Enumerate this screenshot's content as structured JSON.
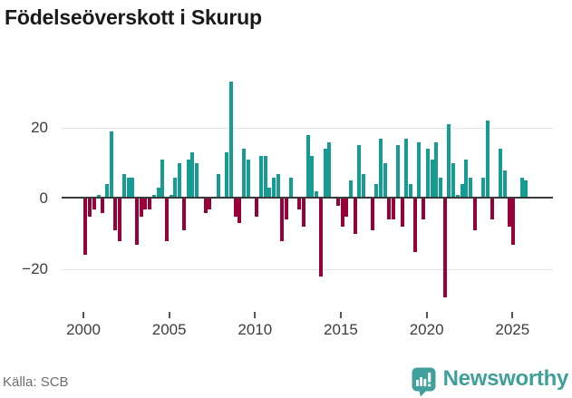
{
  "title": "Födelseöverskott i Skurup",
  "source": "Källa: SCB",
  "logo": {
    "text": "Newsworthy",
    "icon": "newsworthy-speech-bubble-barchart-icon",
    "color": "#3f9f9a"
  },
  "colors": {
    "positive_bar": "#169c92",
    "negative_bar": "#970038",
    "gridline": "#e5e5e5",
    "zero_axis": "#3a3a3a",
    "tick_label": "#3d3d3d",
    "title_text": "#1a1a1a",
    "source_text": "#6e6e6e"
  },
  "chart_data": {
    "type": "bar",
    "title": "Födelseöverskott i Skurup",
    "frequency": "quarterly",
    "start_period": "2000-Q1",
    "end_period": "2025-Q4",
    "values": [
      -16,
      -5,
      -3,
      1,
      -4,
      4,
      19,
      -9,
      -12,
      7,
      6,
      6,
      -13,
      -5,
      -3,
      -3,
      1,
      3,
      11,
      -12,
      1,
      6,
      10,
      -9,
      11,
      13,
      10,
      0,
      -4,
      -3,
      0,
      7,
      0,
      13,
      33,
      -5,
      -7,
      14,
      11,
      0,
      -5,
      12,
      12,
      3,
      6,
      7,
      -12,
      -6,
      6,
      0,
      -3,
      -8,
      18,
      12,
      2,
      -22,
      14,
      16,
      0,
      -2,
      -8,
      -5,
      5,
      -10,
      15,
      7,
      0,
      -9,
      4,
      17,
      10,
      -6,
      -6,
      15,
      -8,
      17,
      4,
      -15,
      16,
      -6,
      14,
      11,
      16,
      6,
      -28,
      21,
      10,
      1,
      4,
      11,
      6,
      -9,
      0,
      6,
      22,
      -6,
      0,
      14,
      8,
      -8,
      -13,
      0,
      6,
      5
    ],
    "x_tick_labels": [
      "2000",
      "2005",
      "2010",
      "2015",
      "2020",
      "2025"
    ],
    "y_ticks": [
      20,
      0,
      -20
    ],
    "y_tick_labels": [
      "20",
      "0",
      "−20"
    ],
    "ylim": [
      -30,
      35
    ],
    "grid": "horizontal",
    "legend": "none",
    "positive_color": "#169c92",
    "negative_color": "#970038"
  }
}
